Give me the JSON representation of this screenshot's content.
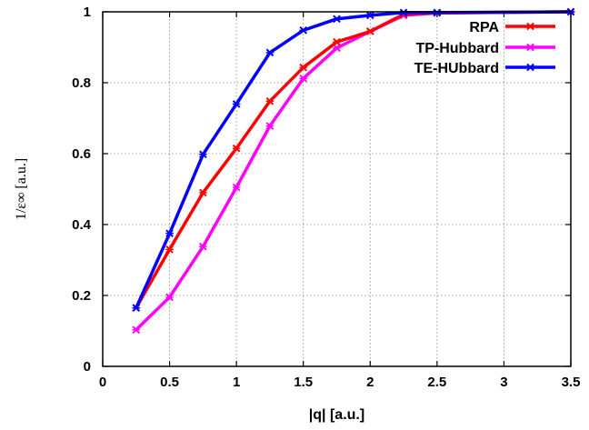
{
  "chart_data": {
    "type": "line",
    "xlabel": "|q| [a.u.]",
    "ylabel": "1/ε∞ [a.u.]",
    "xlim": [
      0,
      3.5
    ],
    "ylim": [
      0,
      1
    ],
    "xticks": [
      0,
      0.5,
      1,
      1.5,
      2,
      2.5,
      3,
      3.5
    ],
    "xtick_labels": [
      "0",
      "0.5",
      "1",
      "1.5",
      "2",
      "2.5",
      "3",
      "3.5"
    ],
    "yticks": [
      0,
      0.2,
      0.4,
      0.6,
      0.8,
      1
    ],
    "ytick_labels": [
      "0",
      "0.2",
      "0.4",
      "0.6",
      "0.8",
      "1"
    ],
    "grid": true,
    "legend_position": "top-right",
    "series": [
      {
        "name": "RPA",
        "color": "#ff0000",
        "x": [
          0.25,
          0.5,
          0.75,
          1.0,
          1.25,
          1.5,
          1.75,
          2.0,
          2.25,
          2.5,
          3.5
        ],
        "y": [
          0.165,
          0.33,
          0.49,
          0.615,
          0.748,
          0.843,
          0.915,
          0.945,
          0.993,
          0.997,
          1.0
        ]
      },
      {
        "name": "TP-Hubbard",
        "color": "#ff00ff",
        "x": [
          0.25,
          0.5,
          0.75,
          1.0,
          1.25,
          1.5,
          1.75,
          2.0,
          2.25,
          2.5,
          3.5
        ],
        "y": [
          0.103,
          0.195,
          0.338,
          0.505,
          0.678,
          0.812,
          0.898,
          0.945,
          0.99,
          0.997,
          1.0
        ]
      },
      {
        "name": "TE-HUbbard",
        "color": "#0000ff",
        "x": [
          0.25,
          0.5,
          0.75,
          1.0,
          1.25,
          1.5,
          1.75,
          2.0,
          2.25,
          2.5,
          3.5
        ],
        "y": [
          0.165,
          0.375,
          0.598,
          0.74,
          0.885,
          0.948,
          0.98,
          0.99,
          0.998,
          0.998,
          1.0
        ]
      }
    ]
  }
}
